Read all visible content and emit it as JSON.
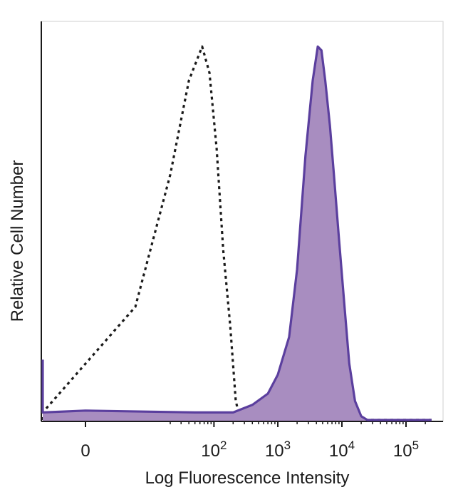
{
  "chart_data": {
    "type": "area",
    "xlabel": "Log Fluorescence Intensity",
    "ylabel": "Relative Cell Number",
    "x_scale": "biexponential",
    "xlim": [
      -80,
      250000
    ],
    "ylim": [
      0,
      1.0
    ],
    "grid": false,
    "x_ticks": [
      {
        "value": 0,
        "base": "0",
        "exp": ""
      },
      {
        "value": 100,
        "base": "10",
        "exp": "2"
      },
      {
        "value": 1000,
        "base": "10",
        "exp": "3"
      },
      {
        "value": 10000,
        "base": "10",
        "exp": "4"
      },
      {
        "value": 100000,
        "base": "10",
        "exp": "5"
      }
    ],
    "series": [
      {
        "style": "dotted",
        "color": "#1a1a1a",
        "fill": "none",
        "points": [
          [
            -80,
            0.0
          ],
          [
            -10,
            0.02
          ],
          [
            5,
            0.3
          ],
          [
            20,
            0.65
          ],
          [
            40,
            0.9
          ],
          [
            65,
            0.99
          ],
          [
            85,
            0.92
          ],
          [
            110,
            0.72
          ],
          [
            140,
            0.45
          ],
          [
            180,
            0.25
          ],
          [
            220,
            0.05
          ],
          [
            260,
            0.0
          ],
          [
            400,
            0.0
          ],
          [
            250000,
            0.0
          ]
        ]
      },
      {
        "style": "solid",
        "color": "#5b3f9e",
        "fill": "#a88dc0",
        "points": [
          [
            -80,
            0.16
          ],
          [
            -70,
            0.03
          ],
          [
            -40,
            0.02
          ],
          [
            0,
            0.025
          ],
          [
            50,
            0.02
          ],
          [
            120,
            0.02
          ],
          [
            200,
            0.02
          ],
          [
            400,
            0.04
          ],
          [
            700,
            0.07
          ],
          [
            1000,
            0.12
          ],
          [
            1500,
            0.22
          ],
          [
            2000,
            0.4
          ],
          [
            2700,
            0.7
          ],
          [
            3500,
            0.9
          ],
          [
            4200,
            0.99
          ],
          [
            4800,
            0.98
          ],
          [
            5500,
            0.9
          ],
          [
            6500,
            0.78
          ],
          [
            7500,
            0.65
          ],
          [
            9000,
            0.48
          ],
          [
            11000,
            0.3
          ],
          [
            13000,
            0.15
          ],
          [
            16000,
            0.05
          ],
          [
            20000,
            0.01
          ],
          [
            25000,
            0.0
          ],
          [
            250000,
            0.0
          ]
        ]
      }
    ]
  }
}
